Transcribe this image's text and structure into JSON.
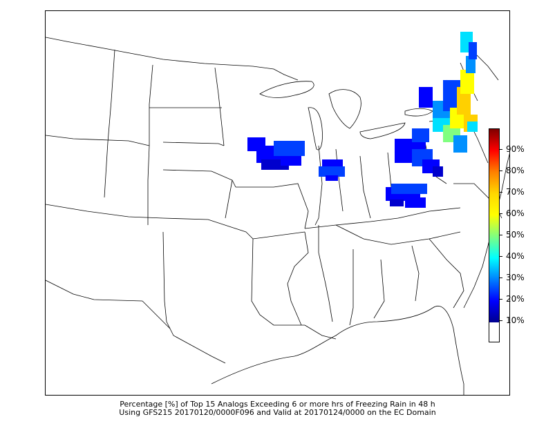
{
  "caption": {
    "line1": "Percentage [%] of Top 15 Analogs Exceeding 6 or more hrs of Freezing Rain in 48 h",
    "line2": "Using GFS215 20170120/0000F096 and Valid at 20170124/0000 on the EC Domain"
  },
  "colorbar": {
    "ticks": [
      "90%",
      "80%",
      "70%",
      "60%",
      "50%",
      "40%",
      "30%",
      "20%",
      "10%"
    ],
    "colors": [
      "#7f0000",
      "#ff0000",
      "#ff8000",
      "#ffd700",
      "#ffff00",
      "#80ff80",
      "#00ffff",
      "#0080ff",
      "#0000ff",
      "#00008f"
    ]
  },
  "map": {
    "colors": {
      "dark_blue": "#0000cd",
      "blue": "#0000ff",
      "mid_blue": "#0040ff",
      "light_blue": "#0090ff",
      "cyan": "#00e0ff",
      "green": "#80ff80",
      "yellow": "#ffff00",
      "gold": "#ffd000"
    }
  }
}
